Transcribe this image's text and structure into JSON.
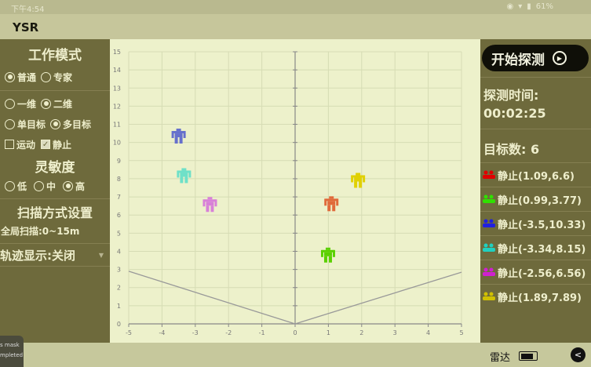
{
  "status_bar": {
    "time": "下午4:54",
    "battery": "61%"
  },
  "app": {
    "title": "YSR"
  },
  "left_panel": {
    "work_mode": {
      "heading": "工作模式",
      "options": [
        {
          "label": "普通",
          "selected": true
        },
        {
          "label": "专家",
          "selected": false
        }
      ]
    },
    "dimension": {
      "options": [
        {
          "label": "一维",
          "selected": false
        },
        {
          "label": "二维",
          "selected": true
        }
      ]
    },
    "target_mode": {
      "options": [
        {
          "label": "单目标",
          "selected": false
        },
        {
          "label": "多目标",
          "selected": true
        }
      ]
    },
    "motion": {
      "options": [
        {
          "label": "运动",
          "checked": false
        },
        {
          "label": "静止",
          "checked": true
        }
      ]
    },
    "sensitivity": {
      "heading": "灵敏度",
      "options": [
        {
          "label": "低",
          "selected": false
        },
        {
          "label": "中",
          "selected": false
        },
        {
          "label": "高",
          "selected": true
        }
      ]
    },
    "scan": {
      "heading": "扫描方式设置",
      "value": "全局扫描:0~15m"
    },
    "trace": {
      "value": "轨迹显示:关闭"
    }
  },
  "right_panel": {
    "start_label": "开始探测",
    "time_label": "探测时间:",
    "time_value": "00:02:25",
    "count_label": "目标数: 6",
    "targets": [
      {
        "text": "静止(1.09,6.6)",
        "color": "#e00000"
      },
      {
        "text": "静止(0.99,3.77)",
        "color": "#30e000"
      },
      {
        "text": "静止(-3.5,10.33)",
        "color": "#2020e0"
      },
      {
        "text": "静止(-3.34,8.15)",
        "color": "#20d0c0"
      },
      {
        "text": "静止(-2.56,6.56)",
        "color": "#d020d0"
      },
      {
        "text": "静止(1.89,7.89)",
        "color": "#d0c000"
      }
    ]
  },
  "bottom_bar": {
    "radar_label": "雷达"
  },
  "toast": {
    "line1": "s mask",
    "line2": "mpleted"
  },
  "chart_data": {
    "type": "scatter",
    "xlim": [
      -5,
      5
    ],
    "ylim": [
      0,
      15
    ],
    "xticks": [
      -5,
      -4,
      -3,
      -2,
      -1,
      0,
      1,
      2,
      3,
      4,
      5
    ],
    "yticks": [
      0,
      1,
      2,
      3,
      4,
      5,
      6,
      7,
      8,
      9,
      10,
      11,
      12,
      13,
      14,
      15
    ],
    "grid": true,
    "fov_lines": [
      [
        [
          0,
          0
        ],
        [
          -5,
          2.9
        ]
      ],
      [
        [
          0,
          0
        ],
        [
          5,
          2.85
        ]
      ]
    ],
    "points": [
      {
        "x": 1.09,
        "y": 6.6,
        "color": "#e06a3a"
      },
      {
        "x": 0.99,
        "y": 3.77,
        "color": "#5ad000"
      },
      {
        "x": -3.5,
        "y": 10.33,
        "color": "#6670cc"
      },
      {
        "x": -3.34,
        "y": 8.15,
        "color": "#6ee0c8"
      },
      {
        "x": -2.56,
        "y": 6.56,
        "color": "#d880d8"
      },
      {
        "x": 1.89,
        "y": 7.89,
        "color": "#e0d000"
      }
    ]
  }
}
